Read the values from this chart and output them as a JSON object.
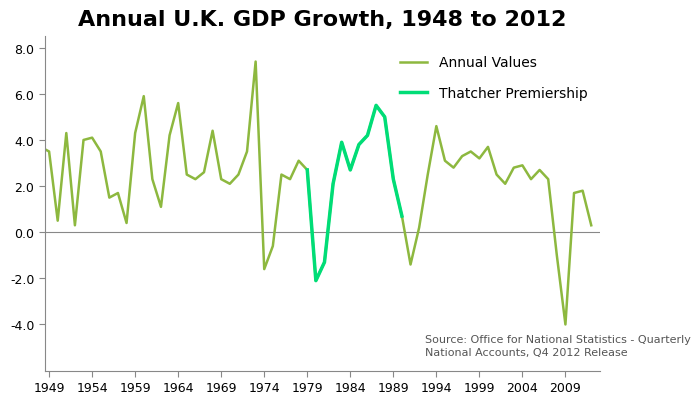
{
  "title": "Annual U.K. GDP Growth, 1948 to 2012",
  "years": [
    1948,
    1949,
    1950,
    1951,
    1952,
    1953,
    1954,
    1955,
    1956,
    1957,
    1958,
    1959,
    1960,
    1961,
    1962,
    1963,
    1964,
    1965,
    1966,
    1967,
    1968,
    1969,
    1970,
    1971,
    1972,
    1973,
    1974,
    1975,
    1976,
    1977,
    1978,
    1979,
    1980,
    1981,
    1982,
    1983,
    1984,
    1985,
    1986,
    1987,
    1988,
    1989,
    1990,
    1991,
    1992,
    1993,
    1994,
    1995,
    1996,
    1997,
    1998,
    1999,
    2000,
    2001,
    2002,
    2003,
    2004,
    2005,
    2006,
    2007,
    2008,
    2009,
    2010,
    2011,
    2012
  ],
  "gdp_values": [
    3.7,
    3.5,
    0.5,
    4.3,
    0.3,
    4.0,
    4.1,
    3.5,
    1.5,
    1.7,
    0.4,
    4.3,
    5.9,
    2.3,
    1.1,
    4.2,
    5.6,
    2.5,
    2.3,
    2.6,
    4.4,
    2.3,
    2.1,
    2.5,
    3.5,
    7.4,
    -1.6,
    -0.6,
    2.5,
    2.3,
    3.1,
    2.7,
    -2.1,
    -1.3,
    2.1,
    3.9,
    2.7,
    3.8,
    4.2,
    5.5,
    5.0,
    2.3,
    0.7,
    -1.4,
    0.2,
    2.5,
    4.6,
    3.1,
    2.8,
    3.3,
    3.5,
    3.2,
    3.7,
    2.5,
    2.1,
    2.8,
    2.9,
    2.3,
    2.7,
    2.3,
    -1.0,
    -4.0,
    1.7,
    1.8,
    0.3
  ],
  "thatcher_start": 1979,
  "thatcher_end": 1990,
  "annual_color": "#8db83f",
  "thatcher_color": "#00dd77",
  "background_color": "#ffffff",
  "source_text": "Source: Office for National Statistics - Quarterly\nNational Accounts, Q4 2012 Release",
  "ylim": [
    -6.0,
    8.5
  ],
  "yticks": [
    -4.0,
    -2.0,
    0.0,
    2.0,
    4.0,
    6.0,
    8.0
  ],
  "xlim": [
    1948.5,
    2013.0
  ],
  "xticks": [
    1949,
    1954,
    1959,
    1964,
    1969,
    1974,
    1979,
    1984,
    1989,
    1994,
    1999,
    2004,
    2009
  ],
  "title_fontsize": 16,
  "tick_fontsize": 9,
  "legend_fontsize": 10,
  "source_fontsize": 8,
  "annual_linewidth": 1.8,
  "thatcher_linewidth": 2.5
}
